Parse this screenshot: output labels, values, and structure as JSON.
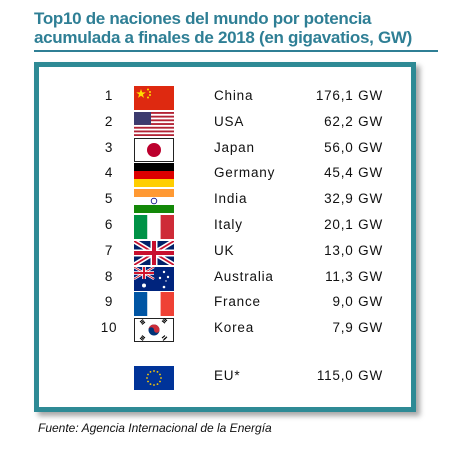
{
  "header": {
    "title_line1": "Top10 de naciones del mundo por potencia",
    "title_line2": "acumulada a finales de  2018 (en gigavatios, GW)"
  },
  "chart_data": {
    "type": "table",
    "rows": [
      {
        "rank": "1",
        "country": "China",
        "value": "176,1 GW",
        "flag": "china-flag-icon"
      },
      {
        "rank": "2",
        "country": "USA",
        "value": "62,2 GW",
        "flag": "usa-flag-icon"
      },
      {
        "rank": "3",
        "country": "Japan",
        "value": "56,0 GW",
        "flag": "japan-flag-icon"
      },
      {
        "rank": "4",
        "country": "Germany",
        "value": "45,4 GW",
        "flag": "germany-flag-icon"
      },
      {
        "rank": "5",
        "country": "India",
        "value": "32,9 GW",
        "flag": "india-flag-icon"
      },
      {
        "rank": "6",
        "country": "Italy",
        "value": "20,1 GW",
        "flag": "italy-flag-icon"
      },
      {
        "rank": "7",
        "country": "UK",
        "value": "13,0 GW",
        "flag": "uk-flag-icon"
      },
      {
        "rank": "8",
        "country": "Australia",
        "value": "11,3 GW",
        "flag": "australia-flag-icon"
      },
      {
        "rank": "9",
        "country": "France",
        "value": "9,0 GW",
        "flag": "france-flag-icon"
      },
      {
        "rank": "10",
        "country": "Korea",
        "value": "7,9 GW",
        "flag": "korea-flag-icon"
      }
    ],
    "eu": {
      "rank": "",
      "country": "EU*",
      "value": "115,0 GW",
      "flag": "eu-flag-icon"
    }
  },
  "footer": {
    "source": "Fuente: Agencia Internacional de la Energía"
  },
  "colors": {
    "title": "#2f7f95",
    "frame_border": "#2e8a95"
  }
}
